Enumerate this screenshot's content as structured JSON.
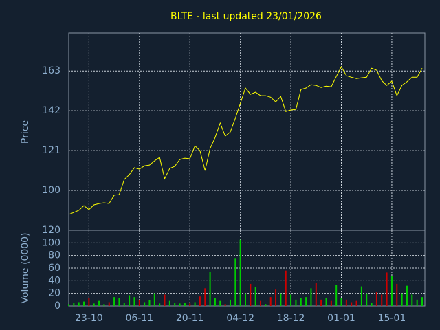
{
  "chart_data": [
    {
      "type": "line",
      "title": "BLTE - last updated 23/01/2026",
      "ylabel": "Price",
      "color": "#ffff00",
      "ylim": [
        79,
        183
      ],
      "yticks": [
        100,
        121,
        142,
        163
      ],
      "grid": true,
      "values": [
        87.3,
        88.4,
        89.5,
        92,
        89.9,
        92.4,
        93.1,
        93.5,
        93.1,
        97.5,
        97.8,
        105.8,
        108.3,
        112,
        111.2,
        113,
        113.4,
        115.6,
        117.4,
        106.2,
        111.6,
        112.7,
        116.3,
        117,
        116.7,
        123.5,
        121,
        110.5,
        122.1,
        127.9,
        135.5,
        128.6,
        130.8,
        138,
        146,
        154,
        150.7,
        151.8,
        150,
        150,
        149.2,
        146.7,
        149.6,
        141.6,
        142.4,
        142.7,
        153.2,
        154,
        155.8,
        155.4,
        154.3,
        155,
        154.7,
        160.1,
        165.2,
        160.5,
        159.7,
        159,
        159.4,
        159.7,
        164.4,
        163.4,
        157.9,
        155.4,
        157.6,
        150,
        155.4,
        157.3,
        159.7,
        159.7,
        164.4
      ]
    },
    {
      "type": "bar",
      "ylabel": "Volume (0000)",
      "up_color": "#00cc00",
      "down_color": "#cc0000",
      "ylim": [
        0,
        120
      ],
      "yticks": [
        0,
        20,
        40,
        60,
        80,
        100,
        120
      ],
      "grid": true,
      "categories": [
        null,
        null,
        null,
        null,
        "23-10",
        null,
        null,
        null,
        null,
        null,
        null,
        null,
        null,
        null,
        "06-11",
        null,
        null,
        null,
        null,
        null,
        null,
        null,
        null,
        null,
        "20-11",
        null,
        null,
        null,
        null,
        null,
        null,
        null,
        null,
        null,
        "04-12",
        null,
        null,
        null,
        null,
        null,
        null,
        null,
        null,
        null,
        "18-12",
        null,
        null,
        null,
        null,
        null,
        null,
        null,
        null,
        null,
        "01-01",
        null,
        null,
        null,
        null,
        null,
        null,
        null,
        null,
        null,
        "15-01",
        null,
        null,
        null,
        null,
        null,
        null
      ],
      "values": [
        3,
        5,
        6,
        7,
        12,
        4,
        8,
        3,
        6,
        14,
        12,
        5,
        17,
        14,
        10,
        6,
        9,
        20,
        4,
        18,
        8,
        5,
        4,
        5,
        4,
        6,
        15,
        28,
        54,
        12,
        8,
        3,
        10,
        76,
        105,
        20,
        35,
        30,
        8,
        3,
        14,
        26,
        20,
        56,
        18,
        10,
        12,
        14,
        28,
        37,
        10,
        12,
        8,
        33,
        12,
        10,
        6,
        8,
        31,
        20,
        5,
        22,
        18,
        53,
        48,
        35,
        20,
        32,
        18,
        10,
        14
      ]
    }
  ]
}
